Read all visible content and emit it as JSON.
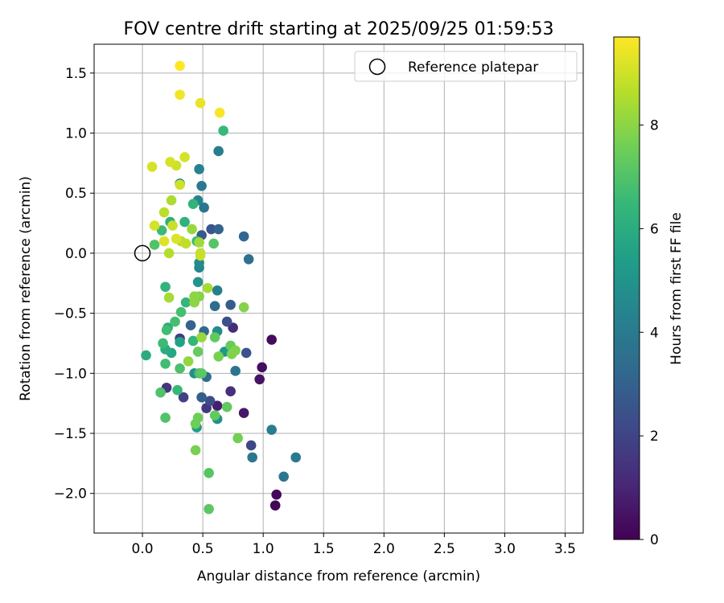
{
  "chart_data": {
    "type": "scatter",
    "title": "FOV centre drift starting at 2025/09/25 01:59:53",
    "xlabel": "Angular distance from reference (arcmin)",
    "ylabel": "Rotation from reference (arcmin)",
    "xlim": [
      -0.4,
      3.65
    ],
    "ylim": [
      -2.33,
      1.74
    ],
    "x_ticks": [
      0.0,
      0.5,
      1.0,
      1.5,
      2.0,
      2.5,
      3.0,
      3.5
    ],
    "x_tick_labels": [
      "0.0",
      "0.5",
      "1.0",
      "1.5",
      "2.0",
      "2.5",
      "3.0",
      "3.5"
    ],
    "y_ticks": [
      -2.0,
      -1.5,
      -1.0,
      -0.5,
      0.0,
      0.5,
      1.0,
      1.5
    ],
    "y_tick_labels": [
      "−2.0",
      "−1.5",
      "−1.0",
      "−0.5",
      "0.0",
      "0.5",
      "1.0",
      "1.5"
    ],
    "grid": true,
    "legend": {
      "location": "upper right",
      "entries": [
        "Reference platepar"
      ]
    },
    "reference_point": {
      "x": 0.0,
      "y": 0.0
    },
    "colorbar": {
      "label": "Hours from first FF file",
      "range": [
        0,
        9.7
      ],
      "ticks": [
        0,
        2,
        4,
        6,
        8
      ],
      "tick_labels": [
        "0",
        "2",
        "4",
        "6",
        "8"
      ],
      "colormap": "viridis",
      "colormap_stops": [
        "#440154",
        "#482878",
        "#3e4989",
        "#31688e",
        "#26828e",
        "#1f9e89",
        "#35b779",
        "#6ece58",
        "#b5de2b",
        "#fde725"
      ]
    },
    "points": [
      {
        "x": 1.1,
        "y": -2.1,
        "t": 0.1
      },
      {
        "x": 1.11,
        "y": -2.01,
        "t": 0.2
      },
      {
        "x": 1.07,
        "y": -0.72,
        "t": 0.3
      },
      {
        "x": 0.99,
        "y": -0.95,
        "t": 0.4
      },
      {
        "x": 0.97,
        "y": -1.05,
        "t": 0.5
      },
      {
        "x": 0.84,
        "y": -1.33,
        "t": 0.6
      },
      {
        "x": 0.62,
        "y": -1.27,
        "t": 0.8
      },
      {
        "x": 0.75,
        "y": -0.62,
        "t": 1.2
      },
      {
        "x": 0.73,
        "y": -1.15,
        "t": 1.3
      },
      {
        "x": 0.2,
        "y": -1.12,
        "t": 1.5
      },
      {
        "x": 0.53,
        "y": -1.29,
        "t": 1.6
      },
      {
        "x": 0.31,
        "y": -0.71,
        "t": 1.8
      },
      {
        "x": 0.34,
        "y": -1.2,
        "t": 1.9
      },
      {
        "x": 0.9,
        "y": -1.6,
        "t": 2.1
      },
      {
        "x": 0.56,
        "y": -1.23,
        "t": 2.3
      },
      {
        "x": 0.7,
        "y": -0.57,
        "t": 2.4
      },
      {
        "x": 0.86,
        "y": -0.83,
        "t": 2.5
      },
      {
        "x": 0.57,
        "y": 0.2,
        "t": 2.6
      },
      {
        "x": 0.49,
        "y": 0.15,
        "t": 2.7
      },
      {
        "x": 0.73,
        "y": -0.43,
        "t": 2.8
      },
      {
        "x": 0.49,
        "y": -1.2,
        "t": 2.9
      },
      {
        "x": 0.4,
        "y": -0.6,
        "t": 3.0
      },
      {
        "x": 0.63,
        "y": 0.2,
        "t": 3.1
      },
      {
        "x": 0.84,
        "y": 0.14,
        "t": 3.2
      },
      {
        "x": 0.51,
        "y": -0.65,
        "t": 3.3
      },
      {
        "x": 0.6,
        "y": -0.44,
        "t": 3.4
      },
      {
        "x": 0.53,
        "y": -1.03,
        "t": 3.5
      },
      {
        "x": 0.88,
        "y": -0.05,
        "t": 3.6
      },
      {
        "x": 0.77,
        "y": -0.98,
        "t": 3.7
      },
      {
        "x": 0.51,
        "y": 0.38,
        "t": 3.8
      },
      {
        "x": 0.49,
        "y": 0.56,
        "t": 3.9
      },
      {
        "x": 0.91,
        "y": -1.7,
        "t": 3.9
      },
      {
        "x": 1.27,
        "y": -1.7,
        "t": 4.0
      },
      {
        "x": 1.17,
        "y": -1.86,
        "t": 3.8
      },
      {
        "x": 1.07,
        "y": -1.47,
        "t": 4.1
      },
      {
        "x": 0.62,
        "y": -0.31,
        "t": 4.2
      },
      {
        "x": 0.63,
        "y": 0.85,
        "t": 4.1
      },
      {
        "x": 0.47,
        "y": 0.7,
        "t": 4.3
      },
      {
        "x": 0.46,
        "y": 0.44,
        "t": 4.4
      },
      {
        "x": 0.47,
        "y": -0.12,
        "t": 4.5
      },
      {
        "x": 0.47,
        "y": -0.08,
        "t": 4.6
      },
      {
        "x": 0.62,
        "y": -0.65,
        "t": 4.7
      },
      {
        "x": 0.43,
        "y": -1.0,
        "t": 4.8
      },
      {
        "x": 0.62,
        "y": -1.38,
        "t": 4.9
      },
      {
        "x": 0.31,
        "y": 0.58,
        "t": 4.6
      },
      {
        "x": 0.46,
        "y": -0.24,
        "t": 5.0
      },
      {
        "x": 0.68,
        "y": -0.82,
        "t": 5.2
      },
      {
        "x": 0.45,
        "y": -1.45,
        "t": 5.3
      },
      {
        "x": 0.31,
        "y": -0.74,
        "t": 5.6
      },
      {
        "x": 0.24,
        "y": -0.83,
        "t": 5.8
      },
      {
        "x": 0.21,
        "y": -0.62,
        "t": 5.9
      },
      {
        "x": 0.03,
        "y": -0.85,
        "t": 6.0
      },
      {
        "x": 0.19,
        "y": -0.8,
        "t": 6.0
      },
      {
        "x": 0.23,
        "y": 0.26,
        "t": 6.1
      },
      {
        "x": 0.35,
        "y": 0.26,
        "t": 6.2
      },
      {
        "x": 0.42,
        "y": 0.41,
        "t": 6.3
      },
      {
        "x": 0.19,
        "y": -0.28,
        "t": 6.3
      },
      {
        "x": 0.36,
        "y": -0.41,
        "t": 6.4
      },
      {
        "x": 0.42,
        "y": -0.73,
        "t": 6.4
      },
      {
        "x": 0.29,
        "y": -1.14,
        "t": 6.5
      },
      {
        "x": 0.67,
        "y": 1.02,
        "t": 6.5
      },
      {
        "x": 0.16,
        "y": 0.19,
        "t": 6.6
      },
      {
        "x": 0.45,
        "y": 0.1,
        "t": 6.6
      },
      {
        "x": 0.17,
        "y": -0.75,
        "t": 6.6
      },
      {
        "x": 0.2,
        "y": -0.64,
        "t": 6.7
      },
      {
        "x": 0.19,
        "y": -0.92,
        "t": 6.7
      },
      {
        "x": 0.27,
        "y": -0.57,
        "t": 6.8
      },
      {
        "x": 0.32,
        "y": -0.49,
        "t": 6.8
      },
      {
        "x": 0.31,
        "y": -0.96,
        "t": 6.9
      },
      {
        "x": 0.47,
        "y": -1.0,
        "t": 6.9
      },
      {
        "x": 0.19,
        "y": -1.37,
        "t": 7.0
      },
      {
        "x": 0.15,
        "y": -1.16,
        "t": 7.0
      },
      {
        "x": 0.1,
        "y": 0.07,
        "t": 7.0
      },
      {
        "x": 0.59,
        "y": 0.08,
        "t": 7.1
      },
      {
        "x": 0.55,
        "y": -1.83,
        "t": 7.1
      },
      {
        "x": 0.55,
        "y": -2.13,
        "t": 7.2
      },
      {
        "x": 0.49,
        "y": -1.0,
        "t": 7.2
      },
      {
        "x": 0.6,
        "y": -0.7,
        "t": 7.3
      },
      {
        "x": 0.6,
        "y": -1.35,
        "t": 7.3
      },
      {
        "x": 0.7,
        "y": -1.28,
        "t": 7.3
      },
      {
        "x": 0.73,
        "y": -0.77,
        "t": 7.4
      },
      {
        "x": 0.46,
        "y": -0.82,
        "t": 7.4
      },
      {
        "x": 0.46,
        "y": -1.37,
        "t": 7.5
      },
      {
        "x": 0.44,
        "y": -1.42,
        "t": 7.5
      },
      {
        "x": 0.79,
        "y": -1.54,
        "t": 7.6
      },
      {
        "x": 0.44,
        "y": -1.64,
        "t": 7.7
      },
      {
        "x": 0.63,
        "y": -0.86,
        "t": 7.7
      },
      {
        "x": 0.74,
        "y": -0.84,
        "t": 7.8
      },
      {
        "x": 0.77,
        "y": -0.81,
        "t": 7.8
      },
      {
        "x": 0.84,
        "y": -0.45,
        "t": 7.9
      },
      {
        "x": 0.47,
        "y": -0.36,
        "t": 7.9
      },
      {
        "x": 0.43,
        "y": -0.36,
        "t": 8.0
      },
      {
        "x": 0.43,
        "y": -0.41,
        "t": 8.0
      },
      {
        "x": 0.38,
        "y": -0.9,
        "t": 8.1
      },
      {
        "x": 0.49,
        "y": -0.7,
        "t": 8.2
      },
      {
        "x": 0.41,
        "y": 0.2,
        "t": 8.2
      },
      {
        "x": 0.47,
        "y": 0.09,
        "t": 8.3
      },
      {
        "x": 0.54,
        "y": -0.29,
        "t": 8.4
      },
      {
        "x": 0.22,
        "y": -0.37,
        "t": 8.4
      },
      {
        "x": 0.24,
        "y": 0.44,
        "t": 8.5
      },
      {
        "x": 0.22,
        "y": 0.0,
        "t": 8.6
      },
      {
        "x": 0.18,
        "y": 0.34,
        "t": 8.7
      },
      {
        "x": 0.32,
        "y": 0.1,
        "t": 8.7
      },
      {
        "x": 0.36,
        "y": 0.08,
        "t": 8.8
      },
      {
        "x": 0.48,
        "y": 0.0,
        "t": 8.8
      },
      {
        "x": 0.48,
        "y": -0.02,
        "t": 8.9
      },
      {
        "x": 0.25,
        "y": 0.23,
        "t": 8.9
      },
      {
        "x": 0.31,
        "y": 0.57,
        "t": 9.0
      },
      {
        "x": 0.28,
        "y": 0.73,
        "t": 9.0
      },
      {
        "x": 0.23,
        "y": 0.76,
        "t": 9.1
      },
      {
        "x": 0.35,
        "y": 0.8,
        "t": 9.1
      },
      {
        "x": 0.08,
        "y": 0.72,
        "t": 9.1
      },
      {
        "x": 0.1,
        "y": 0.23,
        "t": 9.1
      },
      {
        "x": 0.18,
        "y": 0.1,
        "t": 9.2
      },
      {
        "x": 0.28,
        "y": 0.12,
        "t": 9.2
      },
      {
        "x": 0.48,
        "y": 1.25,
        "t": 9.4
      },
      {
        "x": 0.31,
        "y": 1.32,
        "t": 9.5
      },
      {
        "x": 0.64,
        "y": 1.17,
        "t": 9.6
      },
      {
        "x": 0.31,
        "y": 1.56,
        "t": 9.7
      }
    ]
  }
}
